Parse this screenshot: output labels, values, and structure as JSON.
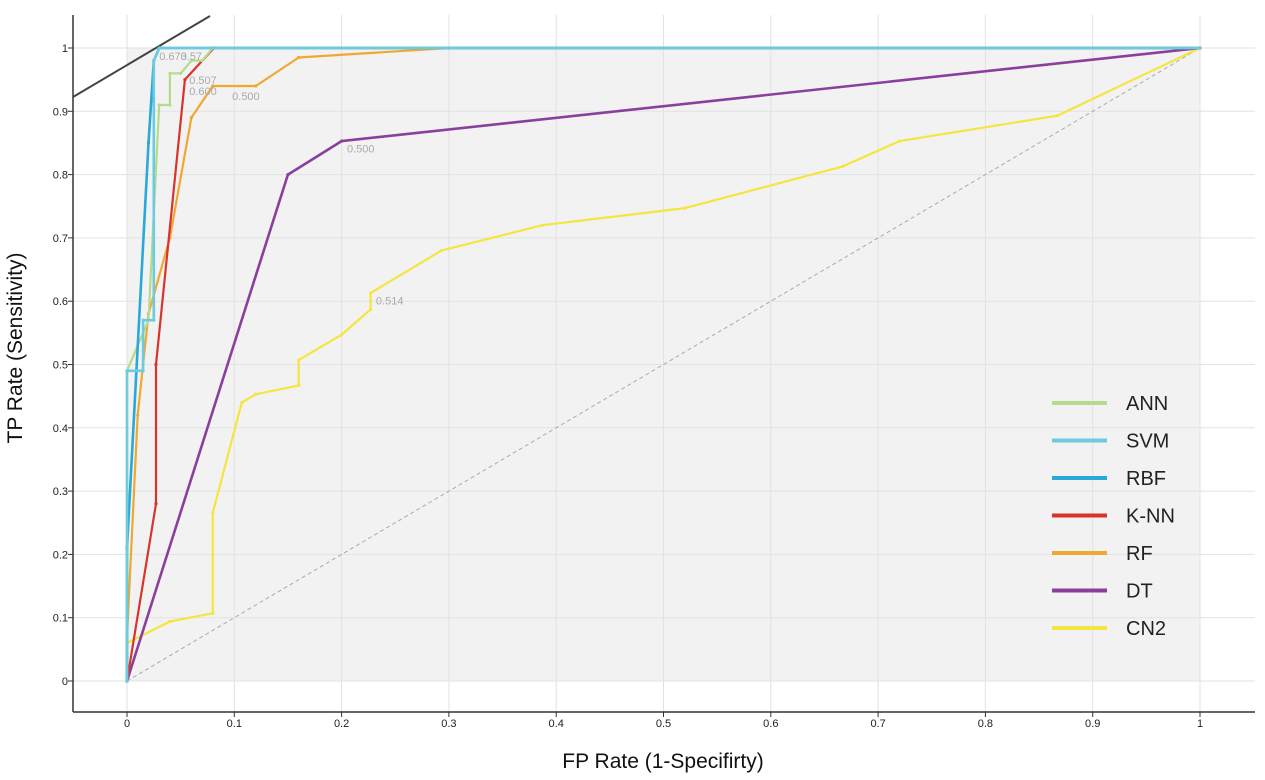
{
  "chart_data": {
    "type": "line",
    "xlabel": "FP Rate (1-Specifirty)",
    "ylabel": "TP Rate (Sensitivity)",
    "xlim": [
      0,
      1
    ],
    "ylim": [
      0,
      1
    ],
    "x_ticks": [
      "0",
      "0.1",
      "0.2",
      "0.3",
      "0.4",
      "0.5",
      "0.6",
      "0.7",
      "0.8",
      "0.9",
      "1"
    ],
    "y_ticks": [
      "0",
      "0.1",
      "0.2",
      "0.3",
      "0.4",
      "0.5",
      "0.6",
      "0.7",
      "0.8",
      "0.9",
      "1"
    ],
    "grid": true,
    "legend_position": "bottom-right",
    "series": [
      {
        "name": "ANN",
        "color": "#b5dc8c",
        "points": [
          [
            0,
            0
          ],
          [
            0,
            0.49
          ],
          [
            0.02,
            0.57
          ],
          [
            0.03,
            0.91
          ],
          [
            0.04,
            0.91
          ],
          [
            0.04,
            0.96
          ],
          [
            0.05,
            0.96
          ],
          [
            0.06,
            0.98
          ],
          [
            0.07,
            0.98
          ],
          [
            0.08,
            1
          ],
          [
            1,
            1
          ]
        ]
      },
      {
        "name": "SVM",
        "color": "#6ccbdf",
        "points": [
          [
            0,
            0
          ],
          [
            0,
            0.49
          ],
          [
            0.015,
            0.49
          ],
          [
            0.015,
            0.57
          ],
          [
            0.025,
            0.57
          ],
          [
            0.025,
            0.98
          ],
          [
            0.03,
            1
          ],
          [
            1,
            1
          ]
        ]
      },
      {
        "name": "RBF",
        "color": "#2aa8d8",
        "points": [
          [
            0,
            0
          ],
          [
            0,
            0.21
          ],
          [
            0.02,
            0.85
          ],
          [
            0.025,
            0.98
          ],
          [
            0.03,
            1
          ],
          [
            1,
            1
          ]
        ]
      },
      {
        "name": "K-NN",
        "color": "#d9342c",
        "points": [
          [
            0,
            0
          ],
          [
            0.027,
            0.28
          ],
          [
            0.027,
            0.5
          ],
          [
            0.054,
            0.95
          ],
          [
            0.081,
            1
          ],
          [
            1,
            1
          ]
        ]
      },
      {
        "name": "RF",
        "color": "#f1a832",
        "points": [
          [
            0,
            0
          ],
          [
            0,
            0.07
          ],
          [
            0.01,
            0.42
          ],
          [
            0.02,
            0.58
          ],
          [
            0.04,
            0.7
          ],
          [
            0.06,
            0.89
          ],
          [
            0.08,
            0.94
          ],
          [
            0.12,
            0.94
          ],
          [
            0.16,
            0.985
          ],
          [
            0.3,
            1
          ],
          [
            1,
            1
          ]
        ]
      },
      {
        "name": "DT",
        "color": "#8b3f9c",
        "points": [
          [
            0,
            0
          ],
          [
            0.15,
            0.8
          ],
          [
            0.2,
            0.853
          ],
          [
            1,
            1
          ]
        ]
      },
      {
        "name": "CN2",
        "color": "#f5e540",
        "points": [
          [
            0,
            0
          ],
          [
            0,
            0.06
          ],
          [
            0.04,
            0.094
          ],
          [
            0.08,
            0.107
          ],
          [
            0.08,
            0.266
          ],
          [
            0.107,
            0.44
          ],
          [
            0.12,
            0.453
          ],
          [
            0.16,
            0.467
          ],
          [
            0.16,
            0.507
          ],
          [
            0.2,
            0.547
          ],
          [
            0.227,
            0.587
          ],
          [
            0.227,
            0.613
          ],
          [
            0.293,
            0.68
          ],
          [
            0.387,
            0.72
          ],
          [
            0.52,
            0.747
          ],
          [
            0.667,
            0.813
          ],
          [
            0.72,
            0.853
          ],
          [
            0.867,
            0.893
          ],
          [
            1,
            1
          ]
        ]
      }
    ],
    "annotations": [
      {
        "text": "0.500",
        "x": 0.205,
        "y": 0.835
      },
      {
        "text": "0.514",
        "x": 0.232,
        "y": 0.595
      },
      {
        "text": "0.500",
        "x": 0.098,
        "y": 0.918
      },
      {
        "text": "0.507",
        "x": 0.058,
        "y": 0.943
      },
      {
        "text": "0.600",
        "x": 0.058,
        "y": 0.926
      },
      {
        "text": "0.673",
        "x": 0.03,
        "y": 0.981
      },
      {
        "text": "0.57",
        "x": 0.05,
        "y": 0.981
      }
    ]
  }
}
